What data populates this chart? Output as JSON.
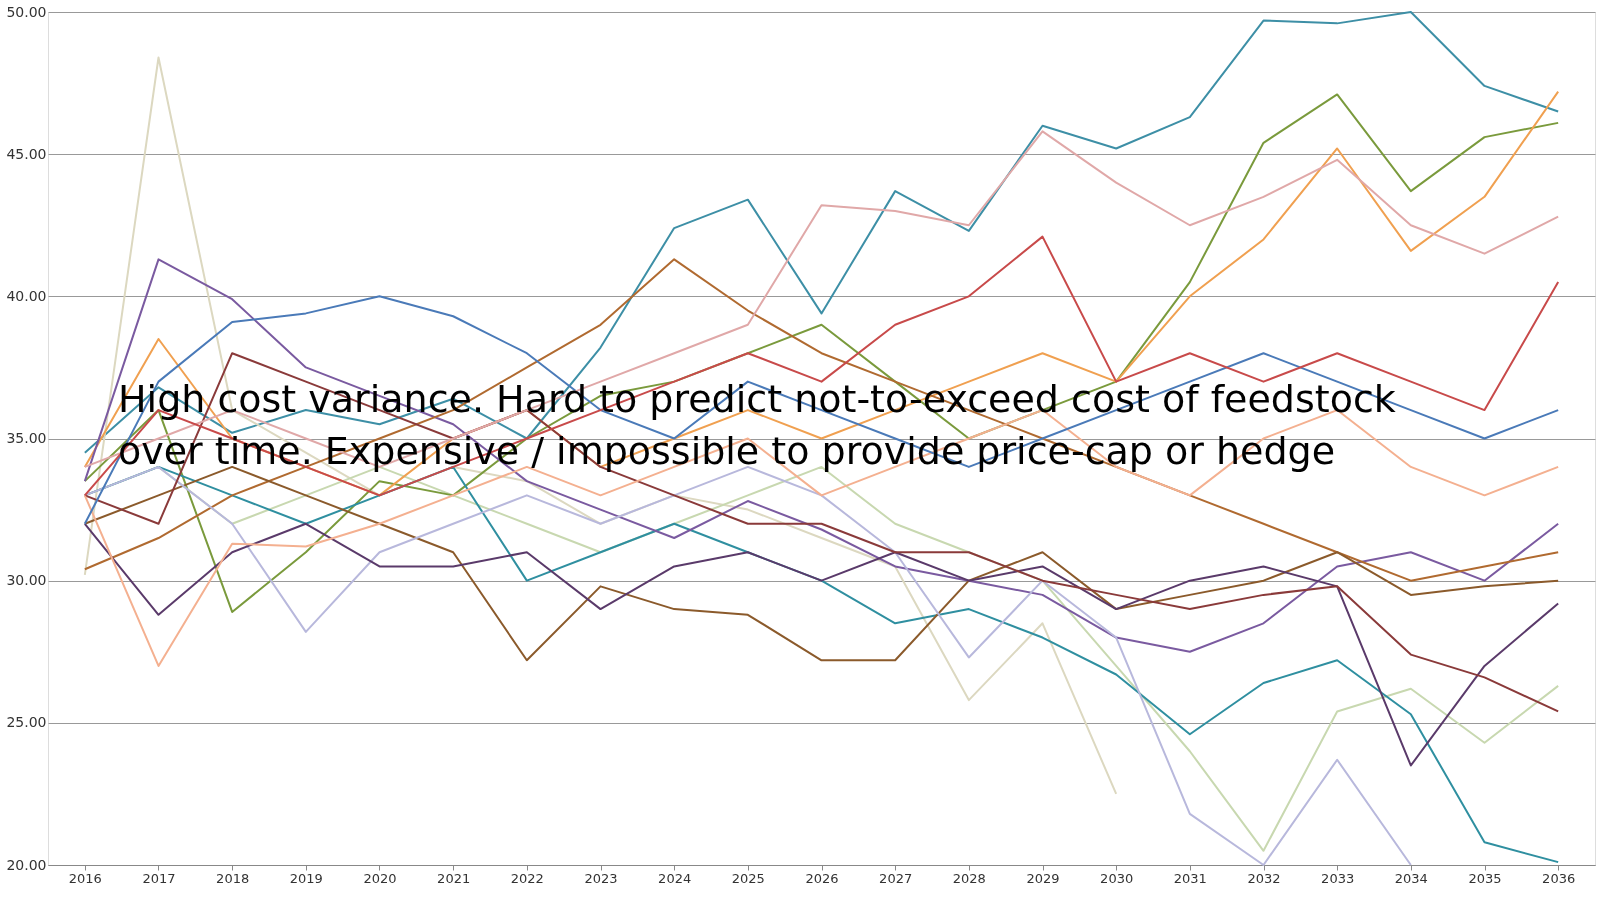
{
  "chart_data": {
    "type": "line",
    "categories": [
      "2016",
      "2017",
      "2018",
      "2019",
      "2020",
      "2021",
      "2022",
      "2023",
      "2024",
      "2025",
      "2026",
      "2027",
      "2028",
      "2029",
      "2030",
      "2031",
      "2032",
      "2033",
      "2034",
      "2035",
      "2036"
    ],
    "ylim": [
      20,
      50
    ],
    "yticks": [
      {
        "value": 20,
        "label": "20.00"
      },
      {
        "value": 25,
        "label": "25.00"
      },
      {
        "value": 30,
        "label": "30.00"
      },
      {
        "value": 35,
        "label": "35.00"
      },
      {
        "value": 40,
        "label": "40.00"
      },
      {
        "value": 45,
        "label": "45.00"
      },
      {
        "value": 50,
        "label": "50.00"
      }
    ],
    "grid": "y",
    "legend": false,
    "marker": "none",
    "line_style": "solid",
    "annotations": [
      "High cost variance. Hard to predict not-to-exceed cost of feedstock over time. Expensive / impossible to provide price-cap or hedge"
    ],
    "series": [
      {
        "color": "#3d8fa6",
        "values": [
          34.5,
          36.8,
          35.2,
          36.0,
          35.5,
          36.4,
          35.0,
          38.2,
          42.4,
          43.4,
          39.4,
          43.7,
          42.3,
          46.0,
          45.2,
          46.3,
          49.7,
          49.6,
          50.0,
          47.4,
          46.5
        ]
      },
      {
        "color": "#dcd8c0",
        "values": [
          30.2,
          48.4,
          36.0,
          34.5,
          33.0,
          34.0,
          33.5,
          32.0,
          33.0,
          32.5,
          31.5,
          30.5,
          25.8,
          28.5,
          22.5,
          null,
          null,
          null,
          null,
          null,
          null
        ]
      },
      {
        "color": "#c8d8b0",
        "values": [
          33,
          34,
          32,
          33,
          34,
          33,
          32,
          31,
          32,
          33,
          34,
          32,
          31,
          30,
          27,
          24,
          20.5,
          25.4,
          26.2,
          24.3,
          26.3
        ]
      },
      {
        "color": "#7a9a3c",
        "values": [
          33.5,
          36,
          28.9,
          31,
          33.5,
          33,
          35,
          36.5,
          37,
          38,
          39,
          37,
          35,
          36,
          37,
          40.5,
          45.4,
          47.1,
          43.7,
          45.6,
          46.1
        ]
      },
      {
        "color": "#f0a050",
        "values": [
          34,
          38.5,
          35,
          34,
          33,
          35,
          36,
          34,
          35,
          36,
          35,
          36,
          37,
          38,
          37,
          40,
          42,
          45.2,
          41.6,
          43.5,
          47.2
        ]
      },
      {
        "color": "#2f8fa0",
        "values": [
          33,
          34,
          33,
          32,
          33,
          34,
          30,
          31,
          32,
          31,
          30,
          28.5,
          29,
          28,
          26.7,
          24.6,
          26.4,
          27.2,
          25.3,
          20.8,
          20.1
        ]
      },
      {
        "color": "#7a5aa0",
        "values": [
          33.5,
          41.3,
          39.9,
          37.5,
          36.5,
          35.5,
          33.5,
          32.5,
          31.5,
          32.8,
          31.8,
          30.5,
          30,
          29.5,
          28,
          27.5,
          28.5,
          30.5,
          31,
          30,
          32
        ]
      },
      {
        "color": "#b06a30",
        "values": [
          30.4,
          31.5,
          33,
          34,
          35,
          36,
          37.5,
          39,
          41.3,
          39.5,
          38,
          37,
          36,
          35,
          34,
          33,
          32,
          31,
          30,
          30.5,
          31
        ]
      },
      {
        "color": "#8b5a2b",
        "values": [
          32,
          33,
          34,
          33,
          32,
          31,
          27.2,
          29.8,
          29.0,
          28.8,
          27.2,
          27.2,
          30,
          31,
          29,
          29.5,
          30,
          31,
          29.5,
          29.8,
          30
        ]
      },
      {
        "color": "#b8b8dc",
        "values": [
          33,
          34,
          32,
          28.2,
          31,
          32,
          33,
          32,
          33,
          34,
          33,
          31,
          27.3,
          30,
          28,
          21.8,
          20.0,
          23.7,
          20.0,
          null,
          null
        ]
      },
      {
        "color": "#5a3a6a",
        "values": [
          32,
          28.8,
          31,
          32,
          30.5,
          30.5,
          31,
          29,
          30.5,
          31,
          30,
          31,
          30,
          30.5,
          29,
          30,
          30.5,
          29.8,
          23.5,
          27,
          29.2
        ]
      },
      {
        "color": "#8a3a3a",
        "values": [
          33,
          32,
          38,
          37,
          36,
          35,
          36,
          34,
          33,
          32,
          32,
          31,
          31,
          30,
          29.5,
          29,
          29.5,
          29.8,
          27.4,
          26.6,
          25.4
        ]
      },
      {
        "color": "#f4b090",
        "values": [
          33,
          27.0,
          31.3,
          31.2,
          32,
          33,
          34,
          33,
          34,
          35,
          33,
          34,
          35,
          36,
          34,
          33,
          35,
          36,
          34,
          33,
          34
        ]
      },
      {
        "color": "#4a7ab8",
        "values": [
          32,
          37,
          39.1,
          39.4,
          40,
          39.3,
          38,
          36,
          35,
          37,
          36,
          35,
          34,
          35,
          36,
          37,
          38,
          37,
          36,
          35,
          36
        ]
      },
      {
        "color": "#e0a8a8",
        "values": [
          34,
          35,
          36,
          35,
          34,
          35,
          36,
          37,
          38,
          39,
          43.2,
          43.0,
          42.5,
          45.8,
          44,
          42.5,
          43.5,
          44.8,
          42.5,
          41.5,
          42.8
        ]
      },
      {
        "color": "#c84a4a",
        "values": [
          33,
          36,
          35,
          34,
          33,
          34,
          35,
          36,
          37,
          38,
          37,
          39,
          40,
          42.1,
          37,
          38,
          37,
          38,
          37,
          36,
          40.5
        ]
      }
    ]
  }
}
